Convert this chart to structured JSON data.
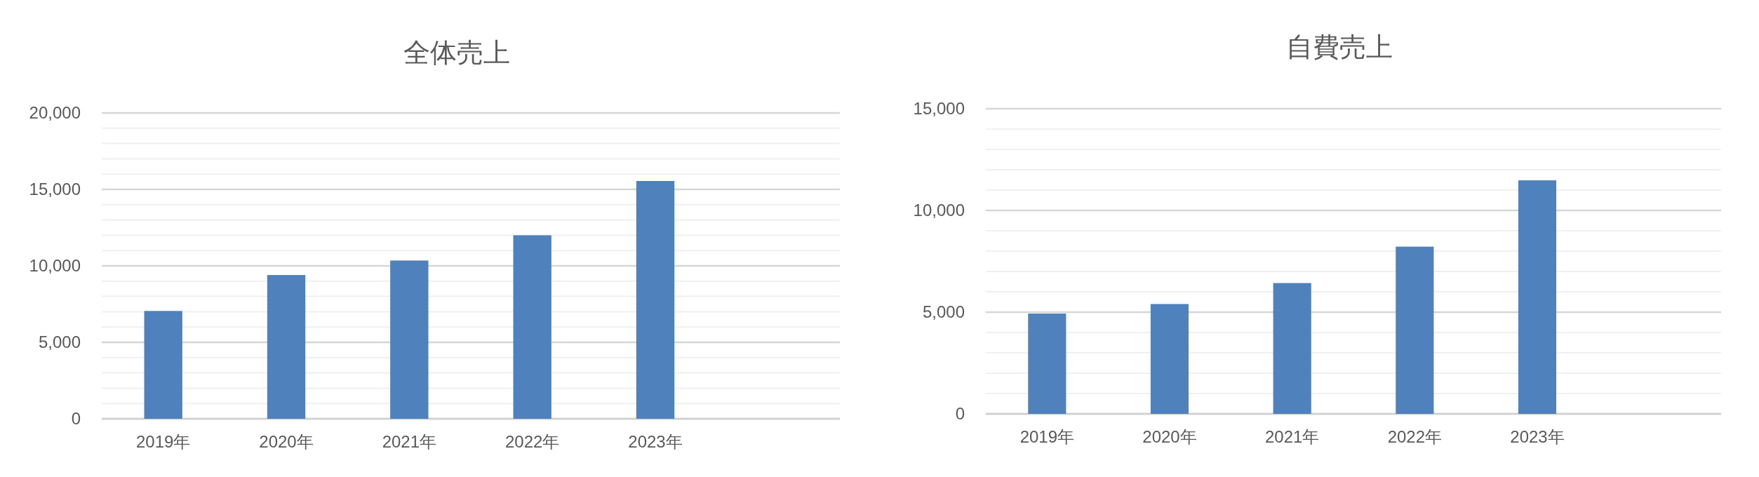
{
  "chart_data": [
    {
      "type": "bar",
      "title": "全体売上",
      "categories": [
        "2019年",
        "2020年",
        "2021年",
        "2022年",
        "2023年",
        null
      ],
      "values": [
        7050,
        9400,
        10350,
        12000,
        15550,
        null
      ],
      "color": "#4f81bd",
      "ylim": [
        0,
        20000
      ],
      "yticks": [
        {
          "value": 0,
          "label": "0"
        },
        {
          "value": 1000,
          "label": null
        },
        {
          "value": 2000,
          "label": null
        },
        {
          "value": 3000,
          "label": null
        },
        {
          "value": 4000,
          "label": null
        },
        {
          "value": 5000,
          "label": "5,000"
        },
        {
          "value": 6000,
          "label": null
        },
        {
          "value": 7000,
          "label": null
        },
        {
          "value": 8000,
          "label": null
        },
        {
          "value": 9000,
          "label": null
        },
        {
          "value": 10000,
          "label": "10,000"
        },
        {
          "value": 11000,
          "label": null
        },
        {
          "value": 12000,
          "label": null
        },
        {
          "value": 13000,
          "label": null
        },
        {
          "value": 14000,
          "label": null
        },
        {
          "value": 15000,
          "label": "15,000"
        },
        {
          "value": 16000,
          "label": null
        },
        {
          "value": 17000,
          "label": null
        },
        {
          "value": 18000,
          "label": null
        },
        {
          "value": 19000,
          "label": null
        },
        {
          "value": 20000,
          "label": "20,000"
        }
      ],
      "grid": "y"
    },
    {
      "type": "bar",
      "title": "自費売上",
      "categories": [
        "2019年",
        "2020年",
        "2021年",
        "2022年",
        "2023年",
        null
      ],
      "values": [
        4930,
        5400,
        6430,
        8220,
        11480,
        null
      ],
      "color": "#4f81bd",
      "ylim": [
        0,
        15000
      ],
      "yticks": [
        {
          "value": 0,
          "label": "0"
        },
        {
          "value": 1000,
          "label": null
        },
        {
          "value": 2000,
          "label": null
        },
        {
          "value": 3000,
          "label": null
        },
        {
          "value": 4000,
          "label": null
        },
        {
          "value": 5000,
          "label": "5,000"
        },
        {
          "value": 6000,
          "label": null
        },
        {
          "value": 7000,
          "label": null
        },
        {
          "value": 8000,
          "label": null
        },
        {
          "value": 9000,
          "label": null
        },
        {
          "value": 10000,
          "label": "10,000"
        },
        {
          "value": 11000,
          "label": null
        },
        {
          "value": 12000,
          "label": null
        },
        {
          "value": 13000,
          "label": null
        },
        {
          "value": 14000,
          "label": null
        },
        {
          "value": 15000,
          "label": "15,000"
        }
      ],
      "grid": "y"
    }
  ]
}
